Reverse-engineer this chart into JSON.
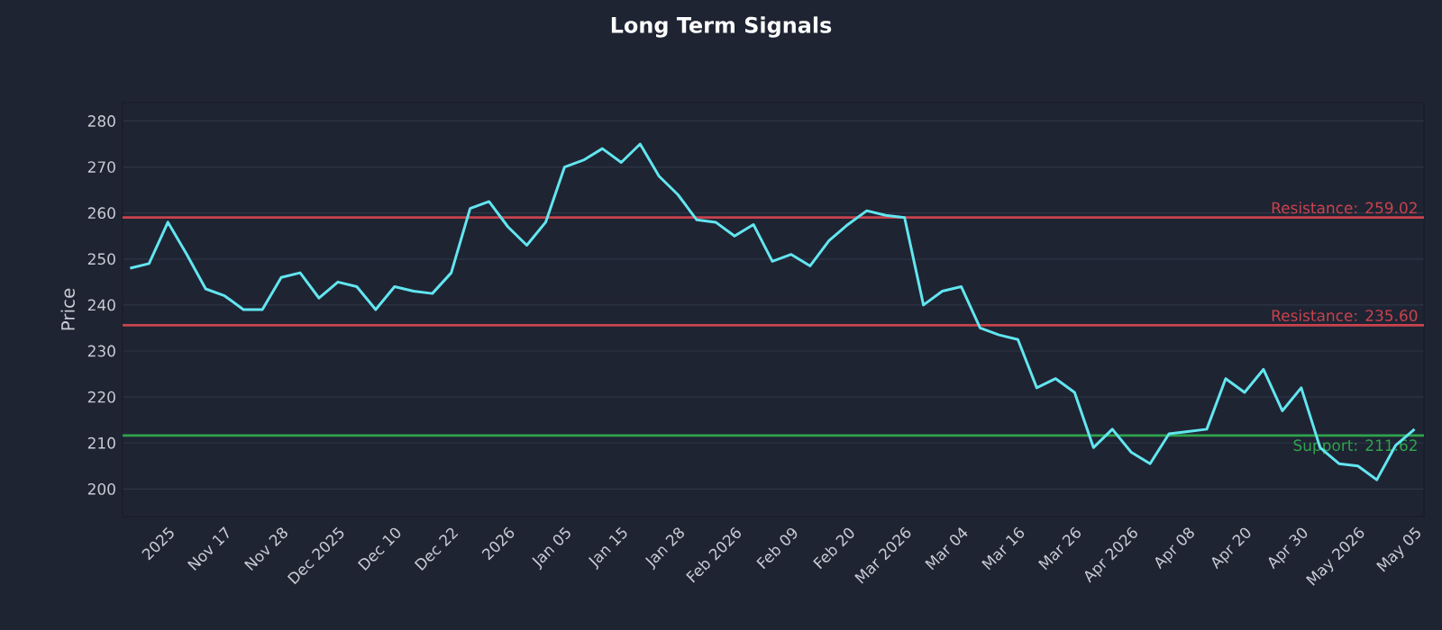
{
  "chart_data": {
    "type": "line",
    "title": "Long Term Signals",
    "ylabel": "Price",
    "categories": [
      null,
      null,
      "2025",
      null,
      null,
      "Nov 17",
      null,
      null,
      "Nov 28",
      null,
      null,
      "Dec 2025",
      null,
      null,
      "Dec 10",
      null,
      null,
      "Dec 22",
      null,
      null,
      "2026",
      null,
      null,
      "Jan 05",
      null,
      null,
      "Jan 15",
      null,
      null,
      "Jan 28",
      null,
      null,
      "Feb 2026",
      null,
      null,
      "Feb 09",
      null,
      null,
      "Feb 20",
      null,
      null,
      "Mar 2026",
      null,
      null,
      "Mar 04",
      null,
      null,
      "Mar 16",
      null,
      null,
      "Mar 26",
      null,
      null,
      "Apr 2026",
      null,
      null,
      "Apr 08",
      null,
      null,
      "Apr 20",
      null,
      null,
      "Apr 30",
      null,
      null,
      "May 2026",
      null,
      null,
      "May 05"
    ],
    "series": [
      {
        "color": "#62e6f0",
        "values": [
          248,
          249,
          258,
          251,
          243.5,
          242,
          239,
          239,
          246,
          247,
          241.5,
          245,
          244,
          239,
          244,
          243,
          242.5,
          247,
          261,
          262.5,
          257,
          253,
          258,
          270,
          271.5,
          274,
          271,
          275,
          268,
          264,
          258.5,
          258,
          255,
          257.5,
          249.5,
          251,
          248.5,
          254,
          257.5,
          260.5,
          259.5,
          259,
          240,
          243,
          244,
          235,
          233.5,
          232.5,
          222,
          224,
          221,
          209,
          213,
          208,
          205.5,
          212,
          212.5,
          213,
          224,
          221,
          226,
          217,
          222,
          209,
          205.5,
          205,
          202,
          209.5,
          213
        ]
      }
    ],
    "ylim": [
      194,
      284
    ],
    "yticks": [
      200,
      210,
      220,
      230,
      240,
      250,
      260,
      270,
      280
    ],
    "grid": "y",
    "ref_lines": [
      {
        "axis": "y",
        "value": 259.02,
        "label": "Resistance: 259.02",
        "color": "#c9434e"
      },
      {
        "axis": "y",
        "value": 235.6,
        "label": "Resistance: 235.60",
        "color": "#c9434e"
      },
      {
        "axis": "y",
        "value": 211.62,
        "label": "Support: 211.62",
        "color": "#2fa34d"
      }
    ]
  }
}
